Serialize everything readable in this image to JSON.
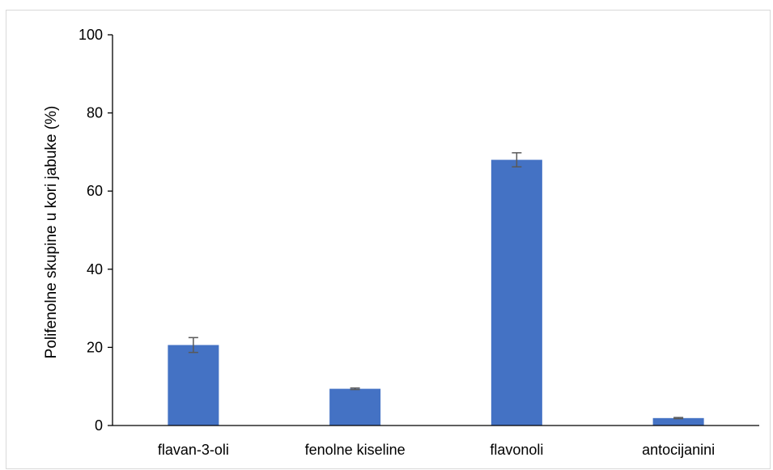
{
  "chart_data": {
    "type": "bar",
    "title": "",
    "xlabel": "",
    "ylabel": "Polifenolne skupine u kori jabuke (%)",
    "categories": [
      "flavan-3-oli",
      "fenolne kiseline",
      "flavonoli",
      "antocijanini"
    ],
    "series": [
      {
        "values": [
          20.6,
          9.4,
          68.0,
          1.9
        ],
        "error": [
          1.9,
          0.2,
          1.8,
          0.15
        ]
      }
    ],
    "ylim": [
      0,
      100
    ],
    "yticks": [
      0,
      20,
      40,
      60,
      80,
      100
    ],
    "grid": false,
    "legend": "none",
    "colors": {
      "bar": "#4472c4",
      "error_bar": "#595959",
      "axis": "#000000"
    }
  }
}
